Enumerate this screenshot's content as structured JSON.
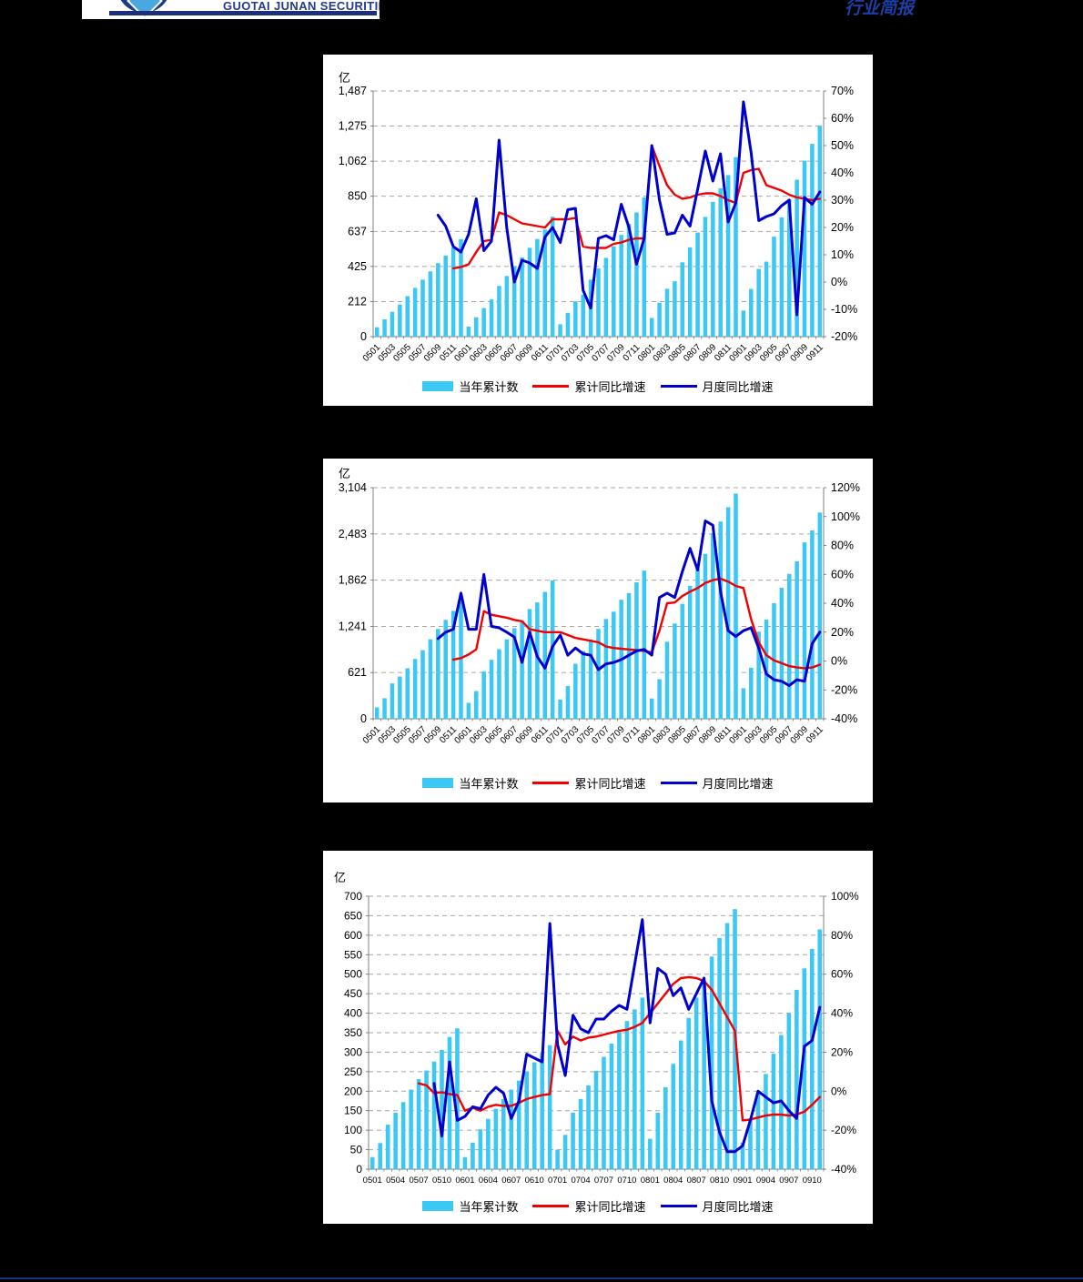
{
  "page": {
    "background": "#000000",
    "panel_background": "#ffffff",
    "footer_rule_color": "#17357f"
  },
  "header": {
    "logo_text": "GUOTAI JUNAN SECURITIES",
    "logo_icon": "guotai-junan-circle-emblem",
    "report_type": "行业简报",
    "brand_navy": "#1b2f7e",
    "title_blue": "#1d3fa6"
  },
  "chart_data": [
    {
      "type": "bar+line",
      "unit_label": "亿",
      "x": [
        "0501",
        "0502",
        "0503",
        "0504",
        "0505",
        "0506",
        "0507",
        "0508",
        "0509",
        "0510",
        "0511",
        "0512",
        "0601",
        "0602",
        "0603",
        "0604",
        "0605",
        "0606",
        "0607",
        "0608",
        "0609",
        "0610",
        "0611",
        "0612",
        "0701",
        "0702",
        "0703",
        "0704",
        "0705",
        "0706",
        "0707",
        "0708",
        "0709",
        "0710",
        "0711",
        "0712",
        "0801",
        "0802",
        "0803",
        "0804",
        "0805",
        "0806",
        "0807",
        "0808",
        "0809",
        "0810",
        "0811",
        "0812",
        "0901",
        "0902",
        "0903",
        "0904",
        "0905",
        "0906",
        "0907",
        "0908",
        "0909",
        "0910",
        "0911"
      ],
      "x_label_every": 2,
      "x_label_rotate": true,
      "left_axis": {
        "min": 0,
        "max": 1487,
        "tick_values": [
          0,
          212,
          425,
          637,
          850,
          1062,
          1275,
          1487
        ],
        "tick_labels": [
          "0",
          "212",
          "425",
          "637",
          "850",
          "1,062",
          "1,275",
          "1,487"
        ]
      },
      "right_axis": {
        "min": -20,
        "max": 70,
        "tick_values": [
          -20,
          -10,
          0,
          10,
          20,
          30,
          40,
          50,
          60,
          70
        ],
        "tick_labels": [
          "-20%",
          "-10%",
          "0%",
          "10%",
          "20%",
          "30%",
          "40%",
          "50%",
          "60%",
          "70%"
        ]
      },
      "grid": "dashed-horizontal",
      "legend_position": "bottom",
      "bars": {
        "name": "当年累计数",
        "color": "#3cc8f5",
        "values": [
          57,
          105,
          150,
          195,
          245,
          295,
          345,
          395,
          445,
          490,
          540,
          590,
          61,
          117,
          173,
          225,
          307,
          367,
          424,
          480,
          538,
          591,
          648,
          726,
          75,
          144,
          214,
          254,
          345,
          413,
          477,
          547,
          616,
          683,
          752,
          842,
          113,
          205,
          290,
          335,
          450,
          541,
          630,
          725,
          816,
          898,
          978,
          1086,
          158,
          289,
          410,
          454,
          605,
          722,
          832,
          950,
          1065,
          1167,
          1277
        ]
      },
      "lines": [
        {
          "name": "累计同比增速",
          "color": "#f00000",
          "width": 2.4,
          "values": [
            null,
            null,
            null,
            null,
            null,
            null,
            null,
            null,
            null,
            null,
            5,
            5.5,
            6.5,
            11,
            15,
            15.5,
            25.5,
            24.5,
            23,
            21.5,
            21,
            20.5,
            20,
            23,
            23,
            23,
            23.5,
            13,
            12.5,
            12.5,
            12.5,
            14,
            14.5,
            15.5,
            16,
            16,
            50,
            42.5,
            35.5,
            32,
            30.5,
            31,
            32,
            32.5,
            32.5,
            31.5,
            30,
            29,
            40,
            41,
            41.5,
            35.5,
            34.5,
            33.5,
            32,
            31,
            30.5,
            30,
            30.5
          ]
        },
        {
          "name": "月度同比增速",
          "color": "#0000cd",
          "width": 3,
          "values": [
            null,
            null,
            null,
            null,
            null,
            null,
            null,
            null,
            24.5,
            20.5,
            13,
            11,
            17.5,
            30.5,
            11.5,
            15,
            52,
            20,
            0,
            8,
            7,
            5,
            16.5,
            20,
            14.5,
            26.5,
            27,
            -3,
            -9.5,
            16,
            17,
            15.5,
            28.5,
            20,
            6.5,
            16,
            50,
            30,
            17.5,
            18,
            24.5,
            20.5,
            34,
            48,
            37,
            47,
            22,
            29,
            66,
            47.5,
            22.5,
            24,
            25,
            28,
            30,
            -12,
            31,
            28.5,
            33
          ]
        }
      ]
    },
    {
      "type": "bar+line",
      "unit_label": "亿",
      "x": [
        "0501",
        "0502",
        "0503",
        "0504",
        "0505",
        "0506",
        "0507",
        "0508",
        "0509",
        "0510",
        "0511",
        "0512",
        "0601",
        "0602",
        "0603",
        "0604",
        "0605",
        "0606",
        "0607",
        "0608",
        "0609",
        "0610",
        "0611",
        "0612",
        "0701",
        "0702",
        "0703",
        "0704",
        "0705",
        "0706",
        "0707",
        "0708",
        "0709",
        "0710",
        "0711",
        "0712",
        "0801",
        "0802",
        "0803",
        "0804",
        "0805",
        "0806",
        "0807",
        "0808",
        "0809",
        "0810",
        "0811",
        "0812",
        "0901",
        "0902",
        "0903",
        "0904",
        "0905",
        "0906",
        "0907",
        "0908",
        "0909",
        "0910",
        "0911"
      ],
      "x_label_every": 2,
      "x_label_rotate": true,
      "left_axis": {
        "min": 0,
        "max": 3104,
        "tick_values": [
          0,
          621,
          1241,
          1862,
          2483,
          3104
        ],
        "tick_labels": [
          "0",
          "621",
          "1,241",
          "1,862",
          "2,483",
          "3,104"
        ]
      },
      "right_axis": {
        "min": -40,
        "max": 120,
        "tick_values": [
          -40,
          -20,
          0,
          20,
          40,
          60,
          80,
          100,
          120
        ],
        "tick_labels": [
          "-40%",
          "-20%",
          "0%",
          "20%",
          "40%",
          "60%",
          "80%",
          "100%",
          "120%"
        ]
      },
      "grid": "dashed-horizontal",
      "legend_position": "bottom",
      "bars": {
        "name": "当年累计数",
        "color": "#3cc8f5",
        "values": [
          154,
          276,
          475,
          568,
          678,
          804,
          922,
          1068,
          1206,
          1328,
          1450,
          1583,
          215,
          373,
          637,
          792,
          934,
          1068,
          1218,
          1319,
          1474,
          1563,
          1705,
          1860,
          258,
          440,
          739,
          911,
          1065,
          1207,
          1340,
          1438,
          1599,
          1688,
          1833,
          1990,
          273,
          532,
          1035,
          1280,
          1544,
          1786,
          2017,
          2215,
          2494,
          2650,
          2841,
          3025,
          411,
          686,
          1170,
          1331,
          1552,
          1759,
          1946,
          2115,
          2369,
          2531,
          2770
        ]
      },
      "lines": [
        {
          "name": "累计同比增速",
          "color": "#f00000",
          "width": 2.4,
          "values": [
            null,
            null,
            null,
            null,
            null,
            null,
            null,
            null,
            null,
            null,
            1,
            2,
            4.5,
            8,
            34.5,
            32,
            31,
            30,
            28.5,
            27.5,
            22,
            21,
            20,
            20,
            20,
            18,
            16,
            15,
            14,
            13,
            10,
            9,
            8.5,
            8,
            7.5,
            7,
            6,
            21,
            40,
            40.5,
            45,
            48,
            50.5,
            54,
            56,
            57,
            55,
            52,
            50.5,
            29,
            13,
            4,
            0.5,
            -1.5,
            -3.5,
            -4.5,
            -5,
            -4.5,
            -2.5
          ]
        },
        {
          "name": "月度同比增速",
          "color": "#0000cd",
          "width": 3,
          "values": [
            null,
            null,
            null,
            null,
            null,
            null,
            null,
            null,
            15.5,
            20,
            22,
            47,
            22,
            22,
            60,
            24,
            23,
            20,
            16.5,
            -1,
            20,
            3,
            -5,
            10,
            18,
            4,
            9,
            5,
            4,
            -6,
            -2,
            -1,
            1,
            4,
            7,
            8,
            4,
            44,
            47,
            44,
            62,
            78,
            63,
            97,
            94,
            48,
            21,
            17,
            21,
            23,
            9,
            -9,
            -13,
            -14,
            -17,
            -13,
            -14,
            12,
            20
          ]
        }
      ]
    },
    {
      "type": "bar+line",
      "unit_label": "亿",
      "x": [
        "0501",
        "0502",
        "0503",
        "0504",
        "0505",
        "0506",
        "0507",
        "0508",
        "0509",
        "0510",
        "0511",
        "0512",
        "0601",
        "0602",
        "0603",
        "0604",
        "0605",
        "0606",
        "0607",
        "0608",
        "0609",
        "0610",
        "0611",
        "0612",
        "0701",
        "0702",
        "0703",
        "0704",
        "0705",
        "0706",
        "0707",
        "0708",
        "0709",
        "0710",
        "0711",
        "0712",
        "0801",
        "0802",
        "0803",
        "0804",
        "0805",
        "0806",
        "0807",
        "0808",
        "0809",
        "0810",
        "0811",
        "0812",
        "0901",
        "0902",
        "0903",
        "0904",
        "0905",
        "0906",
        "0907",
        "0908",
        "0909",
        "0910",
        "0911"
      ],
      "x_label_every": 3,
      "x_label_rotate": false,
      "left_axis": {
        "min": 0,
        "max": 700,
        "tick_values": [
          0,
          50,
          100,
          150,
          200,
          250,
          300,
          350,
          400,
          450,
          500,
          550,
          600,
          650,
          700
        ],
        "tick_labels": [
          "0",
          "50",
          "100",
          "150",
          "200",
          "250",
          "300",
          "350",
          "400",
          "450",
          "500",
          "550",
          "600",
          "650",
          "700"
        ]
      },
      "right_axis": {
        "min": -40,
        "max": 100,
        "tick_values": [
          -40,
          -20,
          0,
          20,
          40,
          60,
          80,
          100
        ],
        "tick_labels": [
          "-40%",
          "-20%",
          "0%",
          "20%",
          "40%",
          "60%",
          "80%",
          "100%"
        ]
      },
      "grid": "dashed-horizontal",
      "legend_position": "bottom",
      "bars": {
        "name": "当年累计数",
        "color": "#3cc8f5",
        "values": [
          31,
          67,
          114,
          145,
          172,
          204,
          231,
          253,
          276,
          306,
          339,
          361,
          31,
          68,
          102,
          129,
          155,
          180,
          204,
          227,
          251,
          274,
          298,
          318,
          50,
          88,
          145,
          180,
          215,
          252,
          288,
          322,
          352,
          380,
          410,
          440,
          78,
          145,
          210,
          270,
          330,
          388,
          440,
          484,
          545,
          593,
          631,
          667,
          68,
          128,
          196,
          244,
          296,
          344,
          400,
          460,
          515,
          565,
          615
        ]
      },
      "lines": [
        {
          "name": "累计同比增速",
          "color": "#f00000",
          "width": 2.4,
          "values": [
            null,
            null,
            null,
            null,
            null,
            null,
            4,
            3,
            -1,
            -0.5,
            -1.5,
            -2,
            -10,
            -8.5,
            -10,
            -8,
            -7,
            -7.5,
            -7.5,
            -6,
            -4,
            -3,
            -2,
            -1.5,
            31,
            24,
            28,
            26,
            27.5,
            28,
            29,
            30,
            31,
            31.5,
            33,
            35,
            40,
            45,
            50,
            55,
            58,
            58.5,
            58,
            56.5,
            52,
            45,
            38,
            31,
            -15,
            -14.5,
            -13.5,
            -12.5,
            -12,
            -12,
            -12.5,
            -12,
            -10.5,
            -7,
            -3
          ]
        },
        {
          "name": "月度同比增速",
          "color": "#0000cd",
          "width": 3,
          "values": [
            null,
            null,
            null,
            null,
            null,
            null,
            null,
            null,
            4,
            -23,
            15,
            -15,
            -13,
            -8,
            -9,
            -2,
            2,
            -1,
            -14,
            -5,
            19,
            17,
            15,
            86,
            24,
            8,
            39,
            32,
            30,
            37,
            37,
            41,
            44,
            42,
            65,
            88,
            35,
            63,
            60,
            49,
            53,
            42,
            50,
            58,
            -5,
            -21,
            -31,
            -31,
            -28,
            -15,
            0,
            -3,
            -6,
            -5,
            -10,
            -14,
            23,
            26,
            43
          ]
        }
      ]
    }
  ]
}
